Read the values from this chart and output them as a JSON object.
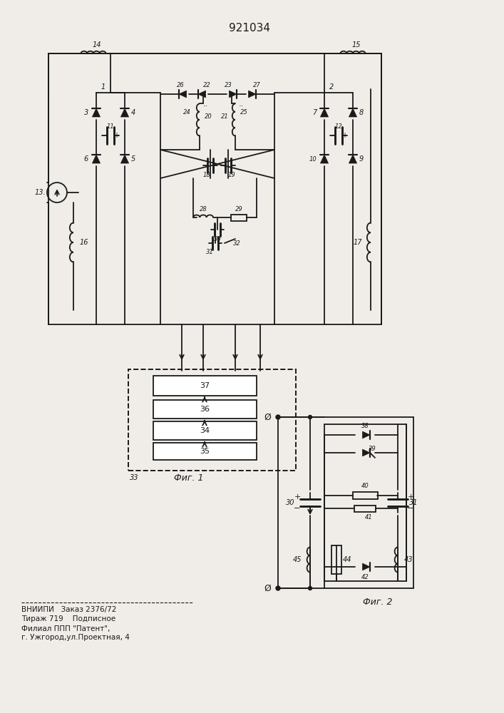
{
  "title": "921034",
  "bg_color": "#f0ede8",
  "line_color": "#1a1a1a",
  "text_color": "#1a1a1a",
  "bottom_text1": "ВНИИПИ   Заказ 2376/72",
  "bottom_text2": "Тираж 719    Подписное",
  "bottom_text3": "Филиал ППП \"Патент\",",
  "bottom_text4": "г. Ужгород,ул.Проектная, 4"
}
